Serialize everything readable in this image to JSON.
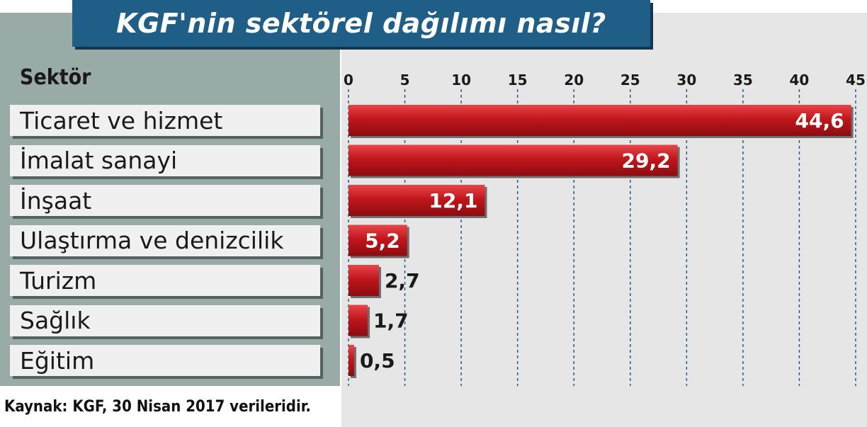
{
  "title": "KGF'nin sektörel dağılımı nasıl?",
  "category_header": "Sektör",
  "source": "Kaynak: KGF, 30 Nisan 2017 verileridir.",
  "colors": {
    "title_bg": "#1f5f87",
    "bar": "#c0171c",
    "left_panel": "#98aba7",
    "right_panel": "#e6e6e6"
  },
  "chart_data": {
    "type": "bar",
    "orientation": "horizontal",
    "title": "KGF'nin sektörel dağılımı nasıl?",
    "categories": [
      "Ticaret ve hizmet",
      "İmalat sanayi",
      "İnşaat",
      "Ulaştırma ve denizcilik",
      "Turizm",
      "Sağlık",
      "Eğitim"
    ],
    "values": [
      44.6,
      29.2,
      12.1,
      5.2,
      2.7,
      1.7,
      0.5
    ],
    "value_labels": [
      "44,6",
      "29,2",
      "12,1",
      "5,2",
      "2,7",
      "1,7",
      "0,5"
    ],
    "xlim": [
      0,
      45
    ],
    "x_ticks": [
      0,
      5,
      10,
      15,
      20,
      25,
      30,
      35,
      40,
      45
    ],
    "x_tick_labels": [
      "0",
      "5",
      "10",
      "15",
      "20",
      "25",
      "30",
      "35",
      "40",
      "45"
    ],
    "tick_position": "top",
    "grid": true
  }
}
